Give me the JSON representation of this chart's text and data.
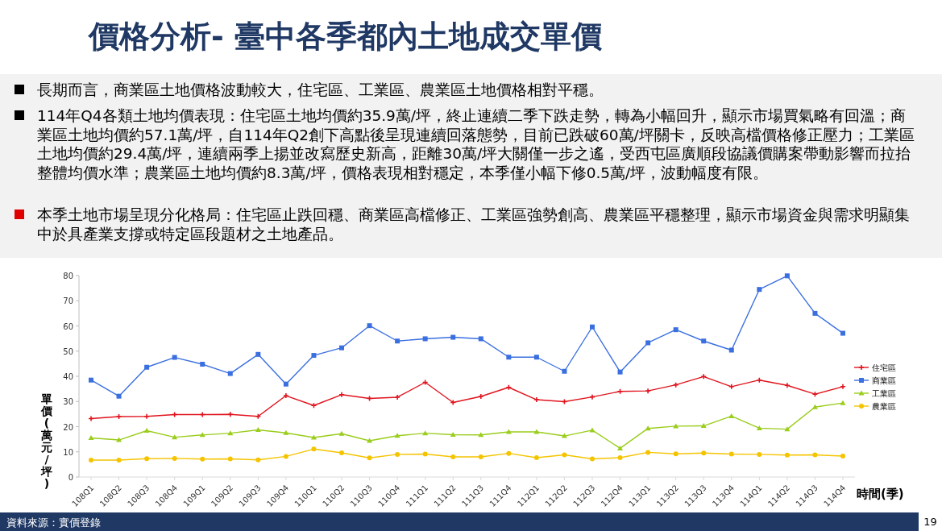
{
  "chart_data": {
    "type": "line",
    "title": "價格分析- 臺中各季都內土地成交單價",
    "annotations": [
      "長期而言，商業區土地價格波動較大，住宅區、工業區、農業區土地價格相對平穩。",
      "114年Q4各類土地均價表現：住宅區土地均價約35.9萬/坪，終止連續二季下跌走勢，轉為小幅回升，顯示市場買氣略有回溫；商業區土地均價約57.1萬/坪，自114年Q2創下高點後呈現連續回落態勢，目前已跌破60萬/坪關卡，反映高檔價格修正壓力；工業區土地均價約29.4萬/坪，連續兩季上揚並改寫歷史新高，距離30萬/坪大關僅一步之遙，受西屯區廣順段協議價購案帶動影響而拉抬整體均價水準；農業區土地均價約8.3萬/坪，價格表現相對穩定，本季僅小幅下修0.5萬/坪，波動幅度有限。",
      "本季土地市場呈現分化格局：住宅區止跌回穩、商業區高檔修正、工業區強勢創高、農業區平穩整理，顯示市場資金與需求明顯集中於具產業支撐或特定區段題材之土地產品。",
      "資料來源：實價登錄",
      "19"
    ],
    "xlabel": "時間(季)",
    "ylabel": "單價(萬元/坪)",
    "categories": [
      "108Q1",
      "108Q2",
      "108Q3",
      "108Q4",
      "109Q1",
      "109Q2",
      "109Q3",
      "109Q4",
      "110Q1",
      "110Q2",
      "110Q3",
      "110Q4",
      "111Q1",
      "111Q2",
      "111Q3",
      "111Q4",
      "112Q1",
      "112Q2",
      "112Q3",
      "112Q4",
      "113Q1",
      "113Q2",
      "113Q3",
      "113Q4",
      "114Q1",
      "114Q2",
      "114Q3",
      "114Q4"
    ],
    "series": [
      {
        "name": "住宅區",
        "color": "#e0141e",
        "marker": "cross",
        "values": [
          23.2,
          24.0,
          24.1,
          24.8,
          24.8,
          24.9,
          24.1,
          32.3,
          28.4,
          32.7,
          31.2,
          31.7,
          37.6,
          29.6,
          32.0,
          35.6,
          30.7,
          29.9,
          31.8,
          34.0,
          34.2,
          36.6,
          39.9,
          35.9,
          38.5,
          36.4,
          32.9,
          35.9
        ]
      },
      {
        "name": "商業區",
        "color": "#3a6fe0",
        "marker": "square",
        "values": [
          38.5,
          32.1,
          43.6,
          47.5,
          44.8,
          41.1,
          48.7,
          36.9,
          48.3,
          51.3,
          60.1,
          54.0,
          54.9,
          55.5,
          54.9,
          47.6,
          47.6,
          42.0,
          59.6,
          41.7,
          53.3,
          58.5,
          54.0,
          50.4,
          74.5,
          79.9,
          65.0,
          57.1
        ]
      },
      {
        "name": "工業區",
        "color": "#9acd1c",
        "marker": "triangle",
        "values": [
          15.5,
          14.7,
          18.4,
          15.8,
          16.7,
          17.4,
          18.7,
          17.5,
          15.7,
          17.2,
          14.4,
          16.4,
          17.4,
          16.8,
          16.7,
          17.9,
          17.9,
          16.3,
          18.6,
          11.4,
          19.3,
          20.2,
          20.3,
          24.2,
          19.4,
          19.0,
          27.8,
          29.4
        ]
      },
      {
        "name": "農業區",
        "color": "#f5c400",
        "marker": "circle",
        "values": [
          6.7,
          6.7,
          7.3,
          7.4,
          7.1,
          7.2,
          6.8,
          8.2,
          11.1,
          9.6,
          7.6,
          9.0,
          9.1,
          8.0,
          8.0,
          9.4,
          7.7,
          8.8,
          7.2,
          7.7,
          9.8,
          9.2,
          9.5,
          9.1,
          9.0,
          8.7,
          8.8,
          8.3
        ]
      }
    ],
    "ylim": [
      0,
      80
    ],
    "yticks": [
      0,
      10,
      20,
      30,
      40,
      50,
      60,
      70,
      80
    ],
    "legend": "right",
    "line_style": "solid"
  }
}
